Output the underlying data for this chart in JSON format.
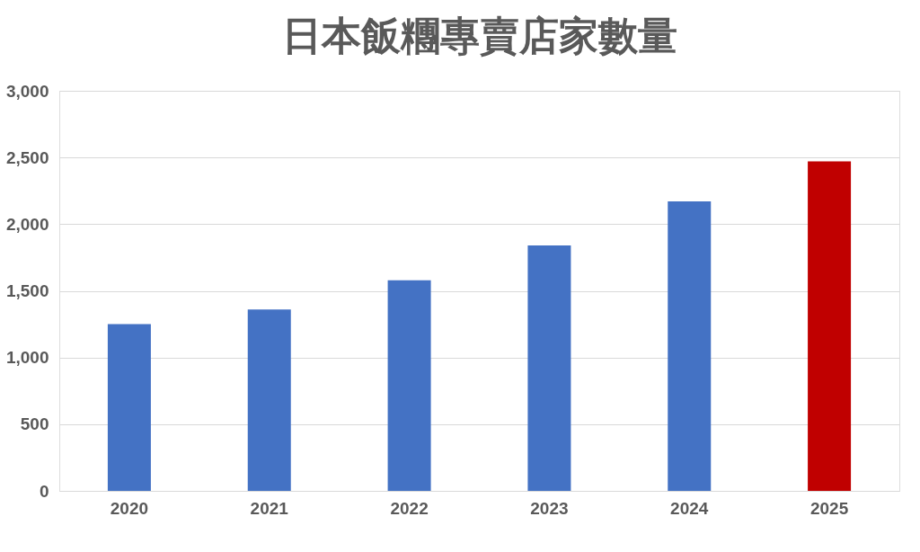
{
  "chart_data": {
    "type": "bar",
    "title": "日本飯糰專賣店家數量",
    "categories": [
      "2020",
      "2021",
      "2022",
      "2023",
      "2024",
      "2025"
    ],
    "values": [
      1250,
      1360,
      1580,
      1840,
      2170,
      2470
    ],
    "colors": [
      "#4472c4",
      "#4472c4",
      "#4472c4",
      "#4472c4",
      "#4472c4",
      "#c00000"
    ],
    "ylim": [
      0,
      3000
    ],
    "yticks": [
      0,
      {
        "value": 500,
        "label": "500"
      },
      {
        "value": 1000,
        "label": "1,000"
      },
      {
        "value": 1500,
        "label": "1,500"
      },
      {
        "value": 2000,
        "label": "2,000"
      },
      {
        "value": 2500,
        "label": "2,500"
      },
      {
        "value": 3000,
        "label": "3,000"
      }
    ],
    "grid": "y"
  }
}
